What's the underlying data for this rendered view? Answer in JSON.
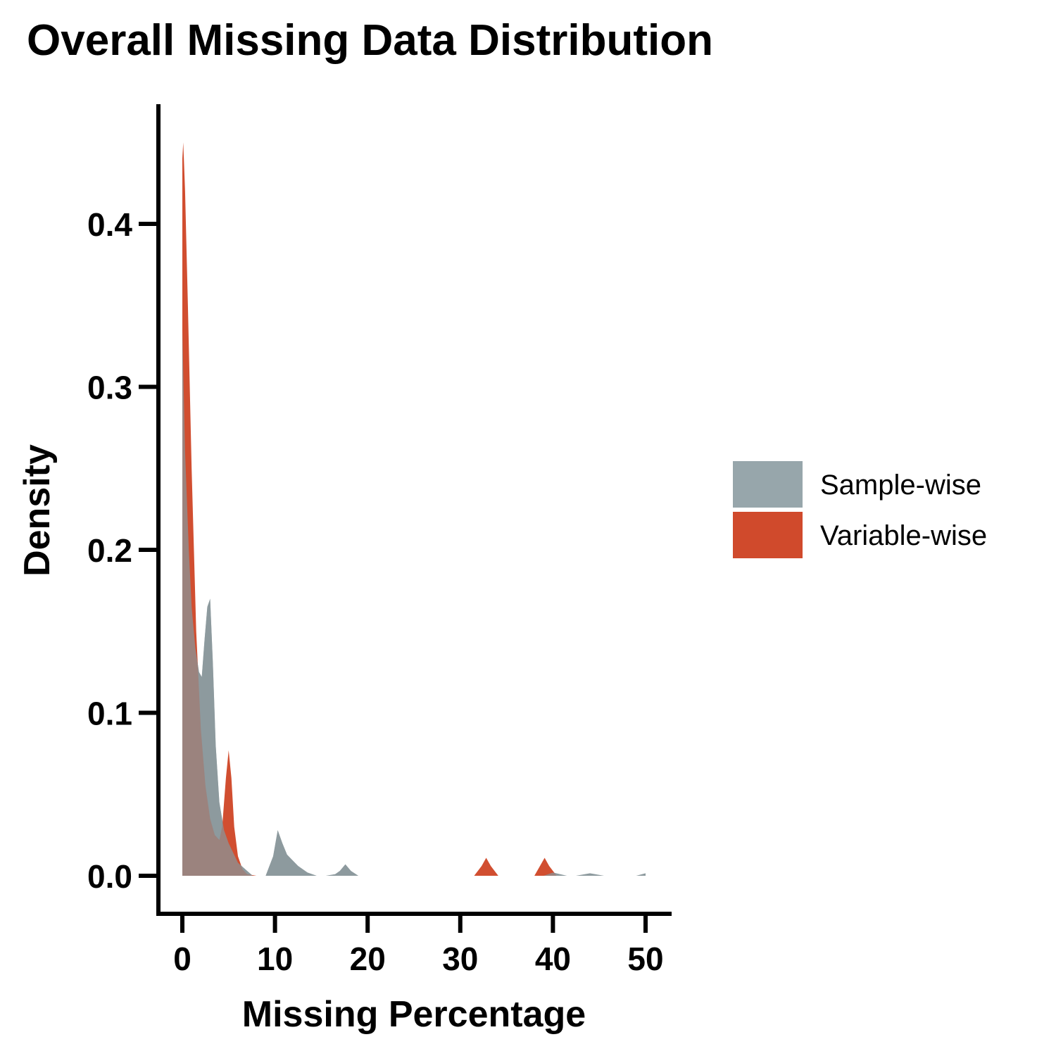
{
  "chart_data": {
    "type": "area",
    "title": "Overall Missing Data Distribution",
    "xlabel": "Missing Percentage",
    "ylabel": "Density",
    "xlim": [
      0,
      50
    ],
    "ylim": [
      0,
      0.45
    ],
    "x_ticks": [
      0,
      10,
      20,
      30,
      40,
      50
    ],
    "y_ticks": [
      0.0,
      0.1,
      0.2,
      0.3,
      0.4
    ],
    "x_tick_labels": [
      "0",
      "10",
      "20",
      "30",
      "40",
      "50"
    ],
    "y_tick_labels": [
      "0.0",
      "0.1",
      "0.2",
      "0.3",
      "0.4"
    ],
    "grid": false,
    "legend_position": "right",
    "series": [
      {
        "name": "Sample-wise",
        "color": "#97a6ab",
        "x": [
          0,
          0.3,
          0.7,
          1.0,
          1.4,
          1.8,
          2.1,
          2.4,
          2.7,
          3.0,
          3.3,
          3.6,
          4.0,
          4.5,
          5.0,
          6.0,
          7.0,
          7.6,
          8.0,
          9.0,
          9.8,
          10.3,
          10.8,
          11.3,
          11.8,
          12.5,
          13.5,
          14.5,
          15.5,
          16.5,
          17.0,
          17.6,
          18.2,
          19.0,
          20.0,
          30.0,
          38.0,
          39.0,
          40.0,
          41.5,
          42.5,
          44.0,
          45.5,
          47.0,
          49.0,
          50.0
        ],
        "y": [
          0.335,
          0.26,
          0.2,
          0.165,
          0.14,
          0.125,
          0.122,
          0.145,
          0.165,
          0.17,
          0.13,
          0.08,
          0.045,
          0.028,
          0.02,
          0.008,
          0.003,
          0.0,
          0.0,
          0.0,
          0.012,
          0.028,
          0.02,
          0.013,
          0.01,
          0.006,
          0.002,
          0.0,
          0.0,
          0.001,
          0.003,
          0.007,
          0.003,
          0.0,
          0.0,
          0.0,
          0.0,
          0.0,
          0.002,
          0.0,
          0.0,
          0.0015,
          0.0,
          0.0,
          0.0,
          0.0015
        ]
      },
      {
        "name": "Variable-wise",
        "color": "#d04a2c",
        "x": [
          0,
          0.1,
          0.3,
          0.6,
          1.0,
          1.5,
          2.0,
          2.5,
          3.0,
          3.5,
          4.0,
          4.3,
          4.7,
          5.0,
          5.3,
          5.6,
          6.0,
          6.5,
          7.0,
          8.0,
          20.0,
          31.5,
          32.3,
          32.8,
          33.3,
          34.1,
          38.0,
          38.6,
          39.1,
          39.6,
          40.4,
          50.0
        ],
        "y": [
          0.44,
          0.45,
          0.42,
          0.35,
          0.25,
          0.15,
          0.09,
          0.055,
          0.035,
          0.025,
          0.022,
          0.03,
          0.06,
          0.077,
          0.06,
          0.03,
          0.012,
          0.004,
          0.001,
          0.0,
          0.0,
          0.0,
          0.006,
          0.011,
          0.006,
          0.0,
          0.0,
          0.006,
          0.011,
          0.006,
          0.0,
          0.0
        ]
      }
    ]
  }
}
